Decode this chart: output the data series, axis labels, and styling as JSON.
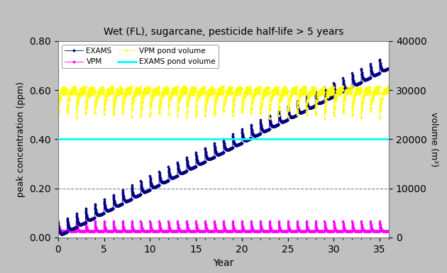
{
  "title": "Wet (FL), sugarcane, pesticide half-life > 5 years",
  "xlabel": "Year",
  "ylabel_left": "peak concentration (ppm)",
  "ylabel_right": "volume (m³)",
  "xlim": [
    0,
    36
  ],
  "ylim_left": [
    0.0,
    0.8
  ],
  "ylim_right": [
    0,
    40000
  ],
  "yticks_left": [
    0.0,
    0.2,
    0.4,
    0.6,
    0.8
  ],
  "yticks_right": [
    0,
    10000,
    20000,
    30000,
    40000
  ],
  "xticks": [
    0,
    5,
    10,
    15,
    20,
    25,
    30,
    35
  ],
  "colors": {
    "EXAMS": "#000080",
    "VPM": "#FF00FF",
    "VPM_pond": "#FFFF00",
    "EXAMS_pond": "#00FFFF",
    "grid_line": "#808080",
    "background": "#FFFFFF",
    "border": "#808080",
    "outer_bg": "#C0C0C0"
  },
  "n_years": 36,
  "steps_per_year": 52,
  "EXAMS_growth_rate": 0.019,
  "EXAMS_spike_amp": 0.055,
  "EXAMS_start": 0.005,
  "VPM_base": 0.025,
  "VPM_spike_amp": 0.04,
  "VPM_pond_base": 30000,
  "VPM_pond_dip_amp": 5000,
  "EXAMS_pond_value": 20000,
  "dpi": 100,
  "figsize": [
    6.3,
    3.85
  ]
}
